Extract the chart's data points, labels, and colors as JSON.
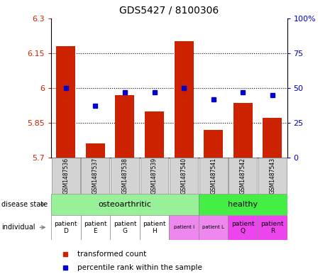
{
  "title": "GDS5427 / 8100306",
  "samples": [
    "GSM1487536",
    "GSM1487537",
    "GSM1487538",
    "GSM1487539",
    "GSM1487540",
    "GSM1487541",
    "GSM1487542",
    "GSM1487543"
  ],
  "transformed_counts": [
    6.18,
    5.76,
    5.97,
    5.9,
    6.2,
    5.82,
    5.935,
    5.87
  ],
  "percentile_ranks": [
    50,
    37,
    47,
    47,
    50,
    42,
    47,
    45
  ],
  "ylim_left": [
    5.7,
    6.3
  ],
  "ylim_right": [
    0,
    100
  ],
  "yticks_left": [
    5.7,
    5.85,
    6.0,
    6.15,
    6.3
  ],
  "yticks_right": [
    0,
    25,
    50,
    75,
    100
  ],
  "ytick_labels_left": [
    "5.7",
    "5.85",
    "6",
    "6.15",
    "6.3"
  ],
  "ytick_labels_right": [
    "0",
    "25",
    "50",
    "75",
    "100%"
  ],
  "disease_states": [
    "osteoarthritic",
    "osteoarthritic",
    "osteoarthritic",
    "osteoarthritic",
    "osteoarthritic",
    "healthy",
    "healthy",
    "healthy"
  ],
  "individuals": [
    "patient\nD",
    "patient\nE",
    "patient\nG",
    "patient\nH",
    "patient I",
    "patient L",
    "patient\nQ",
    "patient\nR"
  ],
  "individual_small": [
    false,
    false,
    false,
    false,
    true,
    true,
    false,
    false
  ],
  "disease_state_colors": {
    "osteoarthritic": "#98F098",
    "healthy": "#44EE44"
  },
  "individual_colors": [
    "#FFFFFF",
    "#FFFFFF",
    "#FFFFFF",
    "#FFFFFF",
    "#EE88EE",
    "#EE88EE",
    "#EE44EE",
    "#EE44EE"
  ],
  "bar_color": "#CC2200",
  "dot_color": "#0000CC",
  "bar_bottom": 5.7,
  "sample_bg_color": "#D3D3D3",
  "left_label_color": "#CC2200",
  "right_label_color": "#0000CC",
  "grid_yticks": [
    6.15,
    6.0,
    5.85
  ]
}
